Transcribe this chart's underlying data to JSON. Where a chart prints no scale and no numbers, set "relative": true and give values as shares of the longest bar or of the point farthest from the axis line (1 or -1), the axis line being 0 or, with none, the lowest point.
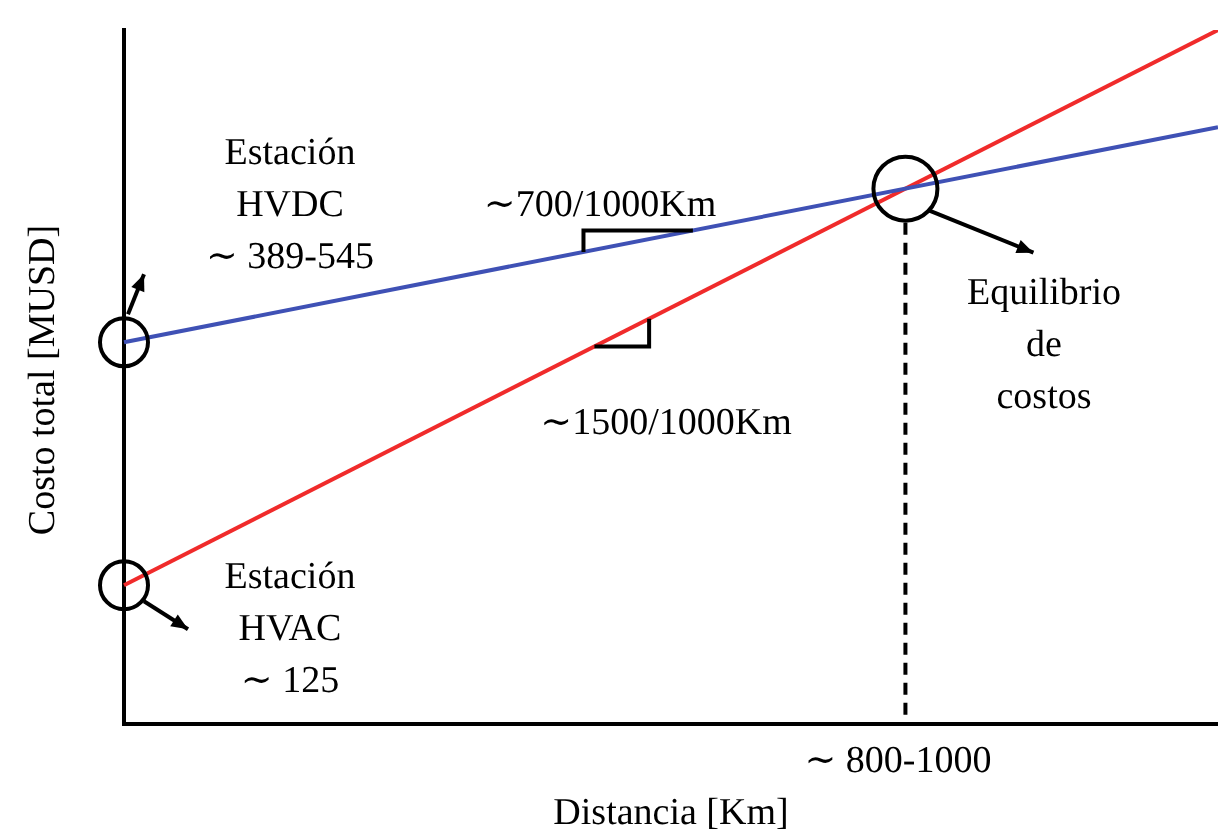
{
  "chart_data": {
    "type": "line",
    "relative": true,
    "xlabel": "Distancia [Km]",
    "ylabel": "Costo total [MUSD]",
    "categories": [
      null,
      null
    ],
    "series": [
      {
        "color": "#3f51b5",
        "values": [
          0.55,
          0.86
        ]
      },
      {
        "color": "#f02b2b",
        "values": [
          0.2,
          1
        ]
      }
    ],
    "line_style": "solid",
    "grid": false,
    "legend": false,
    "annotations": [
      "Estación\nHVDC\n∼ 389-545",
      "∼700/1000Km",
      "∼1500/1000Km",
      "Equilibrio\nde\ncostos",
      "Estación\nHVAC\n∼ 125",
      "∼ 800-1000"
    ]
  }
}
